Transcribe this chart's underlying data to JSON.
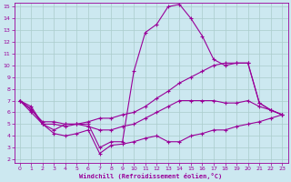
{
  "xlabel": "Windchill (Refroidissement éolien,°C)",
  "bg_color": "#cce8f0",
  "line_color": "#990099",
  "grid_color": "#aacccc",
  "xlim_min": -0.5,
  "xlim_max": 23.5,
  "ylim_min": 1.7,
  "ylim_max": 15.3,
  "xticks": [
    0,
    1,
    2,
    3,
    4,
    5,
    6,
    7,
    8,
    9,
    10,
    11,
    12,
    13,
    14,
    15,
    16,
    17,
    18,
    19,
    20,
    21,
    22,
    23
  ],
  "yticks": [
    2,
    3,
    4,
    5,
    6,
    7,
    8,
    9,
    10,
    11,
    12,
    13,
    14,
    15
  ],
  "line1_x": [
    0,
    1,
    2,
    3,
    4,
    5,
    6,
    7,
    8,
    9,
    10,
    11,
    12,
    13,
    14,
    15,
    16,
    17,
    18,
    19,
    20,
    21,
    22,
    23
  ],
  "line1_y": [
    7.0,
    6.5,
    5.0,
    4.5,
    5.0,
    5.0,
    5.0,
    3.0,
    3.5,
    3.5,
    9.5,
    12.8,
    13.5,
    15.0,
    15.2,
    14.0,
    12.5,
    10.5,
    10.0,
    10.2,
    10.2,
    6.8,
    6.2,
    5.8
  ],
  "line2_x": [
    0,
    1,
    2,
    3,
    4,
    5,
    6,
    7,
    8,
    9,
    10,
    11,
    12,
    13,
    14,
    15,
    16,
    17,
    18,
    19,
    20,
    21,
    22,
    23
  ],
  "line2_y": [
    7.0,
    6.2,
    5.2,
    5.2,
    5.0,
    5.0,
    5.2,
    5.5,
    5.5,
    5.8,
    6.0,
    6.5,
    7.2,
    7.8,
    8.5,
    9.0,
    9.5,
    10.0,
    10.2,
    10.2,
    10.2,
    6.8,
    6.2,
    5.8
  ],
  "line3_x": [
    0,
    1,
    2,
    3,
    4,
    5,
    6,
    7,
    8,
    9,
    10,
    11,
    12,
    13,
    14,
    15,
    16,
    17,
    18,
    19,
    20,
    21,
    22,
    23
  ],
  "line3_y": [
    7.0,
    6.3,
    5.0,
    5.0,
    4.8,
    5.0,
    4.8,
    4.5,
    4.5,
    4.8,
    5.0,
    5.5,
    6.0,
    6.5,
    7.0,
    7.0,
    7.0,
    7.0,
    6.8,
    6.8,
    7.0,
    6.5,
    6.2,
    5.8
  ],
  "line4_x": [
    0,
    1,
    2,
    3,
    4,
    5,
    6,
    7,
    8,
    9,
    10,
    11,
    12,
    13,
    14,
    15,
    16,
    17,
    18,
    19,
    20,
    21,
    22,
    23
  ],
  "line4_y": [
    7.0,
    6.0,
    5.0,
    4.2,
    4.0,
    4.2,
    4.5,
    2.5,
    3.2,
    3.3,
    3.5,
    3.8,
    4.0,
    3.5,
    3.5,
    4.0,
    4.2,
    4.5,
    4.5,
    4.8,
    5.0,
    5.2,
    5.5,
    5.8
  ]
}
